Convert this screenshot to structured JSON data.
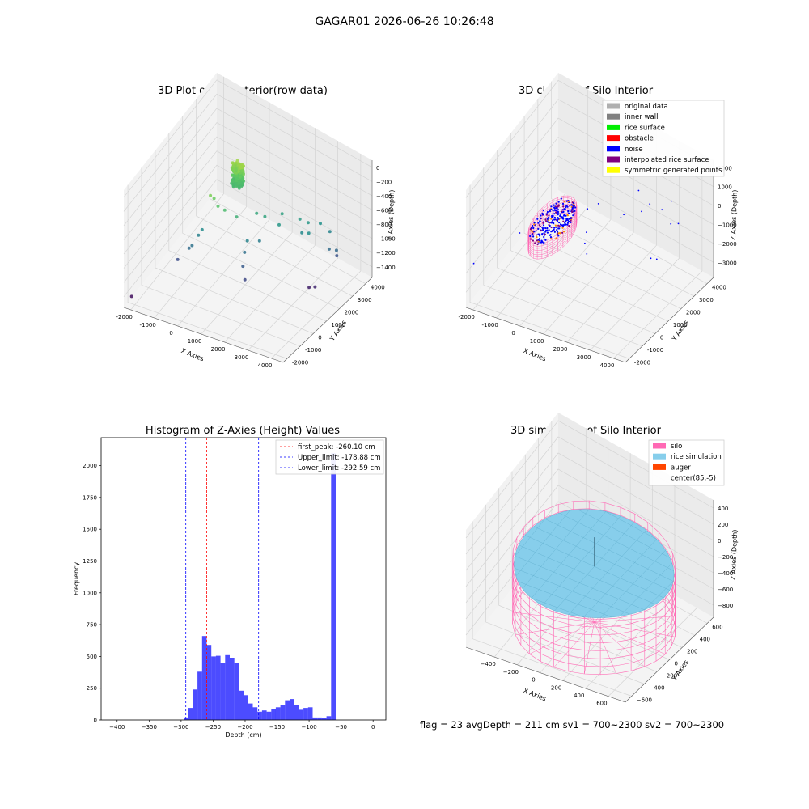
{
  "suptitle": "GAGAR01 2026-06-26 10:26:48",
  "footer": "flag = 23   avgDepth = 211 cm   sv1 = 700~2300   sv2 = 700~2300",
  "chart_data": [
    {
      "type": "scatter3d",
      "title": "3D Plot of Silo Interior(row data)",
      "xlabel": "X Axies",
      "ylabel": "Y Axies",
      "zlabel": "Z Axies (Depth)",
      "x_ticks": [
        "-2000",
        "-1000",
        "0",
        "1000",
        "2000",
        "3000",
        "4000"
      ],
      "y_ticks": [
        "-2000",
        "-1000",
        "0",
        "1000",
        "2000",
        "3000",
        "4000"
      ],
      "z_ticks": [
        "0",
        "−200",
        "−400",
        "−600",
        "−800",
        "−1000",
        "−1200",
        "−1400"
      ],
      "xlim": [
        -2300,
        4500
      ],
      "ylim": [
        -2300,
        4500
      ],
      "zlim": [
        -1550,
        100
      ],
      "colormap": "viridis",
      "points": [
        {
          "x": -2200,
          "y": -1900,
          "z": -1480
        },
        {
          "x": -1100,
          "y": -400,
          "z": -1180
        },
        {
          "x": -700,
          "y": -250,
          "z": -1000
        },
        {
          "x": -600,
          "y": -200,
          "z": -960
        },
        {
          "x": -500,
          "y": 100,
          "z": -870
        },
        {
          "x": -400,
          "y": 200,
          "z": -800
        },
        {
          "x": -100,
          "y": 300,
          "z": -300
        },
        {
          "x": 0,
          "y": 400,
          "z": -350
        },
        {
          "x": 200,
          "y": 350,
          "z": -420
        },
        {
          "x": 400,
          "y": 500,
          "z": -480
        },
        {
          "x": 800,
          "y": 700,
          "z": -560
        },
        {
          "x": 1200,
          "y": 1500,
          "z": -620
        },
        {
          "x": 1500,
          "y": 1600,
          "z": -640
        },
        {
          "x": 1900,
          "y": 2200,
          "z": -660
        },
        {
          "x": 2000,
          "y": 1800,
          "z": -720
        },
        {
          "x": 1200,
          "y": 800,
          "z": -860
        },
        {
          "x": 1500,
          "y": 1200,
          "z": -900
        },
        {
          "x": 1200,
          "y": 600,
          "z": -980
        },
        {
          "x": 1300,
          "y": 300,
          "z": -1100
        },
        {
          "x": 1500,
          "y": 100,
          "z": -1220
        },
        {
          "x": 2500,
          "y": 2500,
          "z": -700
        },
        {
          "x": 2800,
          "y": 2600,
          "z": -720
        },
        {
          "x": 3100,
          "y": 3000,
          "z": -760
        },
        {
          "x": 3400,
          "y": 3200,
          "z": -860
        },
        {
          "x": 3600,
          "y": 2800,
          "z": -1000
        },
        {
          "x": 3800,
          "y": 3000,
          "z": -1020
        },
        {
          "x": 3700,
          "y": 3200,
          "z": -1150
        },
        {
          "x": 3300,
          "y": 1800,
          "z": -1400
        },
        {
          "x": 3500,
          "y": 1900,
          "z": -1380
        },
        {
          "x": 2700,
          "y": 2300,
          "z": -820
        },
        {
          "x": 3000,
          "y": 2300,
          "z": -780
        }
      ],
      "cluster": {
        "x": 85,
        "y": -5,
        "z_min": -500,
        "z_max": -200,
        "count": 220
      }
    },
    {
      "type": "scatter3d",
      "title": "3D classify of Silo Interior",
      "xlabel": "X Axies",
      "ylabel": "Y Axies",
      "zlabel": "Z Axies (Depth)",
      "x_ticks": [
        "-2000",
        "-1000",
        "0",
        "1000",
        "2000",
        "3000",
        "4000"
      ],
      "y_ticks": [
        "-2000",
        "-1000",
        "0",
        "1000",
        "2000",
        "3000",
        "4000"
      ],
      "z_ticks": [
        "2000",
        "1000",
        "0",
        "−1000",
        "−2000",
        "−3000"
      ],
      "xlim": [
        -2300,
        4500
      ],
      "ylim": [
        -2300,
        4500
      ],
      "zlim": [
        -3800,
        2400
      ],
      "legend_position": "upper right",
      "legend": [
        {
          "label": "original data",
          "color": "#b0b0b0"
        },
        {
          "label": "inner wall",
          "color": "#808080"
        },
        {
          "label": "rice surface",
          "color": "#00ee00"
        },
        {
          "label": "obstacle",
          "color": "#ff0000"
        },
        {
          "label": "noise",
          "color": "#0000ff"
        },
        {
          "label": "interpolated rice surface",
          "color": "#800080"
        },
        {
          "label": "symmetric generated points",
          "color": "#ffff00"
        }
      ],
      "noise_points": [
        {
          "x": -2200,
          "y": -1900,
          "z": -1800
        },
        {
          "x": -1100,
          "y": -400,
          "z": -1000
        },
        {
          "x": -700,
          "y": -250,
          "z": -700
        },
        {
          "x": -500,
          "y": 100,
          "z": -500
        },
        {
          "x": 2000,
          "y": 1800,
          "z": -300
        },
        {
          "x": 2500,
          "y": 2500,
          "z": -200
        },
        {
          "x": 3100,
          "y": 3000,
          "z": -100
        },
        {
          "x": 3600,
          "y": 2800,
          "z": -400
        },
        {
          "x": 3700,
          "y": 3200,
          "z": -600
        },
        {
          "x": 1200,
          "y": 600,
          "z": -600
        },
        {
          "x": 1300,
          "y": 300,
          "z": -900
        },
        {
          "x": 1500,
          "y": 100,
          "z": -1200
        },
        {
          "x": 3300,
          "y": 1800,
          "z": -1700
        },
        {
          "x": 3500,
          "y": 1900,
          "z": -1700
        },
        {
          "x": 1200,
          "y": 1500,
          "z": 200
        },
        {
          "x": 2800,
          "y": 2600,
          "z": 300
        },
        {
          "x": 3400,
          "y": 3200,
          "z": 400
        },
        {
          "x": 1900,
          "y": 2200,
          "z": -500
        },
        {
          "x": 900,
          "y": 1200,
          "z": 0
        },
        {
          "x": 2200,
          "y": 2800,
          "z": 500
        }
      ],
      "silo": {
        "center_x": 85,
        "center_y": -5,
        "radius": 650,
        "z_top": 0,
        "z_bottom": -900
      }
    },
    {
      "type": "histogram",
      "title": "Histogram of Z-Axies (Height) Values",
      "xlabel": "Depth (cm)",
      "ylabel": "Frequency",
      "xlim": [
        -425,
        20
      ],
      "ylim": [
        0,
        2220
      ],
      "x_ticks": [
        "−400",
        "−350",
        "−300",
        "−250",
        "−200",
        "−150",
        "−100",
        "−50",
        "0"
      ],
      "y_ticks": [
        "0",
        "250",
        "500",
        "750",
        "1000",
        "1250",
        "1500",
        "1750",
        "2000"
      ],
      "bar_color": "#0000ff",
      "bin_width": 7.2,
      "bin_start": -296,
      "values": [
        20,
        95,
        240,
        380,
        660,
        590,
        500,
        505,
        450,
        510,
        490,
        445,
        230,
        195,
        130,
        100,
        65,
        75,
        65,
        85,
        100,
        120,
        155,
        165,
        120,
        80,
        95,
        100,
        20,
        20,
        15,
        30,
        2100
      ],
      "legend_position": "upper right",
      "vlines": [
        {
          "label": "first_peak: -260.10 cm",
          "x": -260.1,
          "color": "#ff0000"
        },
        {
          "label": "Upper_limit: -178.88 cm",
          "x": -178.88,
          "color": "#0000ff"
        },
        {
          "label": "Lower_limit: -292.59 cm",
          "x": -292.59,
          "color": "#0000ff"
        }
      ]
    },
    {
      "type": "surface3d",
      "title": "3D simulation of Silo Interior",
      "xlabel": "X Axies",
      "ylabel": "Y Axies",
      "zlabel": "Z Axies (Depth)",
      "x_ticks": [
        "−400",
        "−200",
        "0",
        "200",
        "400",
        "600"
      ],
      "y_ticks": [
        "−600",
        "−400",
        "−200",
        "0",
        "200",
        "400",
        "600"
      ],
      "z_ticks": [
        "400",
        "200",
        "0",
        "−200",
        "−400",
        "−600",
        "−800"
      ],
      "xlim": [
        -650,
        750
      ],
      "ylim": [
        -700,
        700
      ],
      "zlim": [
        -950,
        500
      ],
      "legend_position": "upper right",
      "legend": [
        {
          "label": "silo",
          "color": "#ff69b4"
        },
        {
          "label": "rice simulation",
          "color": "#87ceeb"
        },
        {
          "label": "auger",
          "color": "#ff4500"
        },
        {
          "label": "center(85,-5)",
          "color": ""
        }
      ],
      "silo": {
        "center_x": 85,
        "center_y": -5,
        "radius": 630,
        "z_top": -120,
        "z_bottom": -900
      },
      "rice_surface_z": -211
    }
  ]
}
